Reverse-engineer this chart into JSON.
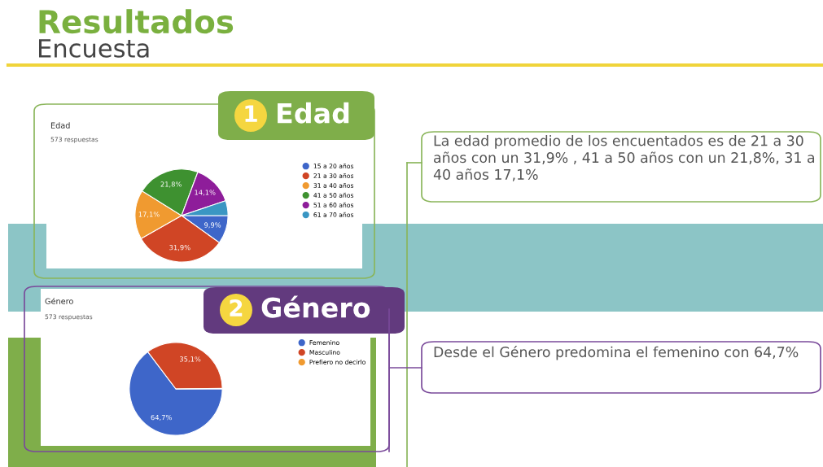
{
  "chart_data": [
    {
      "type": "pie",
      "title": "Edad",
      "subtitle": "573 respuestas",
      "categories": [
        "15 a 20 años",
        "21 a 30 años",
        "31 a 40 años",
        "41 a 50 años",
        "51 a 60 años",
        "61 a 70 años"
      ],
      "values": [
        9.9,
        31.9,
        17.1,
        21.8,
        14.1,
        5.2
      ],
      "colors": [
        "#3e66c9",
        "#d04525",
        "#f09a30",
        "#3e9130",
        "#8e1d9a",
        "#3a96c3"
      ],
      "value_labels": [
        "9,9%",
        "31,9%",
        "17,1%",
        "21,8%",
        "14,1%",
        null
      ],
      "legend": "right",
      "annotations": [
        "Resultados",
        "Encuesta",
        "1",
        "Edad",
        "La edad promedio de los encuentados es de 21 a 30 años con un 31,9% , 41 a 50 años con un 21,8%, 31 a 40 años 17,1%"
      ]
    },
    {
      "type": "pie",
      "title": "Género",
      "subtitle": "573 respuestas",
      "categories": [
        "Femenino",
        "Masculino",
        "Prefiero no decirlo"
      ],
      "values": [
        64.7,
        35.1,
        0.2
      ],
      "colors": [
        "#3e66c9",
        "#d04525",
        "#f09a30"
      ],
      "value_labels": [
        "64,7%",
        "35,1%",
        null
      ],
      "legend": "right",
      "annotations": [
        "2",
        "Género",
        "Desde el Género predomina el femenino con 64,7%"
      ]
    }
  ]
}
